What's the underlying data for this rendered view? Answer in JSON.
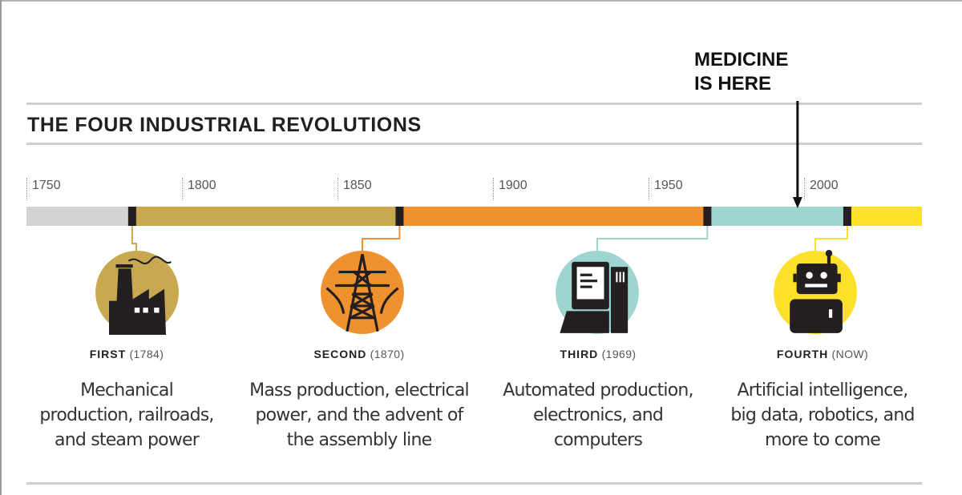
{
  "callout": {
    "line1": "MEDICINE",
    "line2": "IS HERE"
  },
  "title": "THE FOUR INDUSTRIAL REVOLUTIONS",
  "axis_years": [
    "1750",
    "1800",
    "1850",
    "1900",
    "1950",
    "2000"
  ],
  "timeline": {
    "start_year": 1742,
    "end_year": 2030,
    "marker_year": 1990,
    "segments": [
      {
        "name": "pre-industrial",
        "from": 1742,
        "to": 1776,
        "color": "#d3d3d3"
      },
      {
        "name": "first",
        "from": 1776,
        "to": 1862,
        "color": "#c9a94f"
      },
      {
        "name": "second",
        "from": 1862,
        "to": 1961,
        "color": "#f0912f"
      },
      {
        "name": "third",
        "from": 1961,
        "to": 2006,
        "color": "#9fd5d0"
      },
      {
        "name": "fourth",
        "from": 2006,
        "to": 2030,
        "color": "#fde029"
      }
    ],
    "ticks": [
      1776,
      1862,
      1961,
      2006
    ]
  },
  "revolutions": [
    {
      "ordinal": "FIRST",
      "when": "(1784)",
      "desc": [
        "Mechanical",
        "production, railroads,",
        "and steam power"
      ],
      "color": "#c9a94f",
      "icon": "factory-icon"
    },
    {
      "ordinal": "SECOND",
      "when": "(1870)",
      "desc": [
        "Mass production, electrical",
        "power, and the advent of",
        "the assembly line"
      ],
      "color": "#f0912f",
      "icon": "power-tower-icon"
    },
    {
      "ordinal": "THIRD",
      "when": "(1969)",
      "desc": [
        "Automated production,",
        "electronics, and",
        "computers"
      ],
      "color": "#9fd5d0",
      "icon": "computer-icon"
    },
    {
      "ordinal": "FOURTH",
      "when": "(NOW)",
      "desc": [
        "Artificial intelligence,",
        "big data, robotics, and",
        "more to come"
      ],
      "color": "#fde029",
      "icon": "robot-icon"
    }
  ]
}
